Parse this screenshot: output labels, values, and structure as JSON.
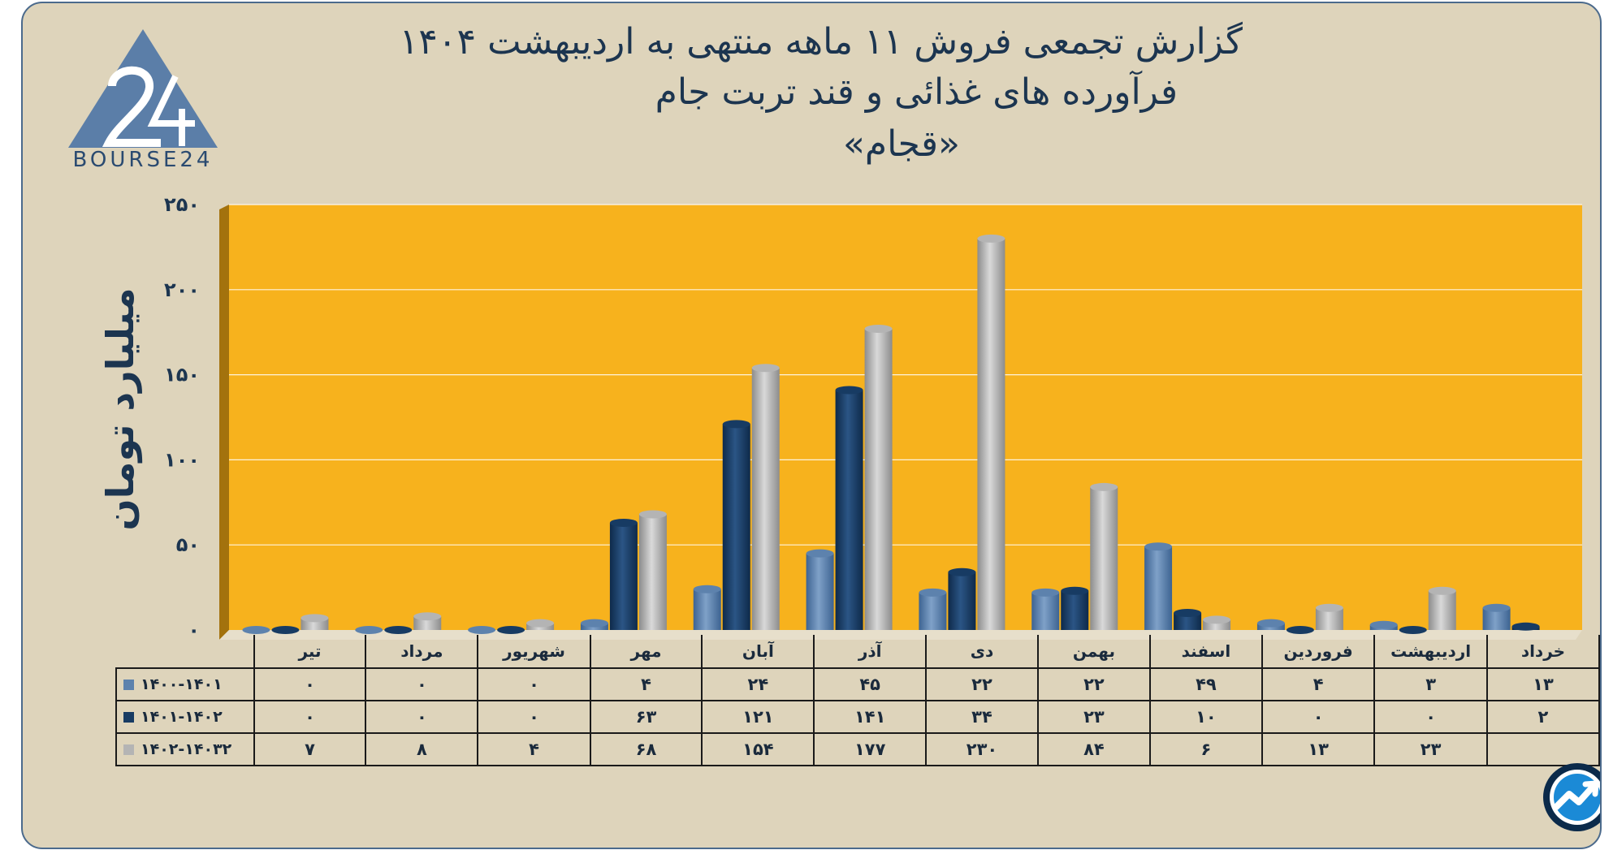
{
  "title": {
    "line1": "گزارش تجمعی فروش ۱۱ ماهه منتهی به اردیبهشت ۱۴۰۴",
    "line2": "فرآورده های غذائی و قند تربت جام",
    "line3": "«قجام»"
  },
  "logo": {
    "text": "BOURSE24",
    "icon": "bourse24-logo"
  },
  "badge": {
    "icon": "trend-arrow-icon"
  },
  "colors": {
    "background": "#ded4bb",
    "plot": "#f7b21d",
    "series1": "#5d82ad",
    "series2": "#173b63",
    "series3": "#b4b4b4"
  },
  "chart_data": {
    "type": "bar",
    "ylabel": "میلیارد تومان",
    "ylim": [
      0,
      250
    ],
    "yticks": [
      "۰",
      "۵۰",
      "۱۰۰",
      "۱۵۰",
      "۲۰۰",
      "۲۵۰"
    ],
    "ytick_values": [
      0,
      50,
      100,
      150,
      200,
      250
    ],
    "grid": true,
    "categories": [
      "تیر",
      "مرداد",
      "شهریور",
      "مهر",
      "آبان",
      "آذر",
      "دی",
      "بهمن",
      "اسفند",
      "فروردین",
      "اردیبهشت",
      "خرداد"
    ],
    "series": [
      {
        "name": "۱۴۰۰-۱۴۰۱",
        "values": [
          0,
          0,
          0,
          4,
          24,
          45,
          22,
          22,
          49,
          4,
          3,
          13
        ],
        "labels": [
          "۰",
          "۰",
          "۰",
          "۴",
          "۲۴",
          "۴۵",
          "۲۲",
          "۲۲",
          "۴۹",
          "۴",
          "۳",
          "۱۳"
        ]
      },
      {
        "name": "۱۴۰۱-۱۴۰۲",
        "values": [
          0,
          0,
          0,
          63,
          121,
          141,
          34,
          23,
          10,
          0,
          0,
          2
        ],
        "labels": [
          "۰",
          "۰",
          "۰",
          "۶۳",
          "۱۲۱",
          "۱۴۱",
          "۳۴",
          "۲۳",
          "۱۰",
          "۰",
          "۰",
          "۲"
        ]
      },
      {
        "name": "۱۴۰۲-۱۴۰۳۲",
        "values": [
          7,
          8,
          4,
          68,
          154,
          177,
          230,
          84,
          6,
          13,
          23,
          null
        ],
        "labels": [
          "۷",
          "۸",
          "۴",
          "۶۸",
          "۱۵۴",
          "۱۷۷",
          "۲۳۰",
          "۸۴",
          "۶",
          "۱۳",
          "۲۳",
          ""
        ]
      }
    ]
  }
}
